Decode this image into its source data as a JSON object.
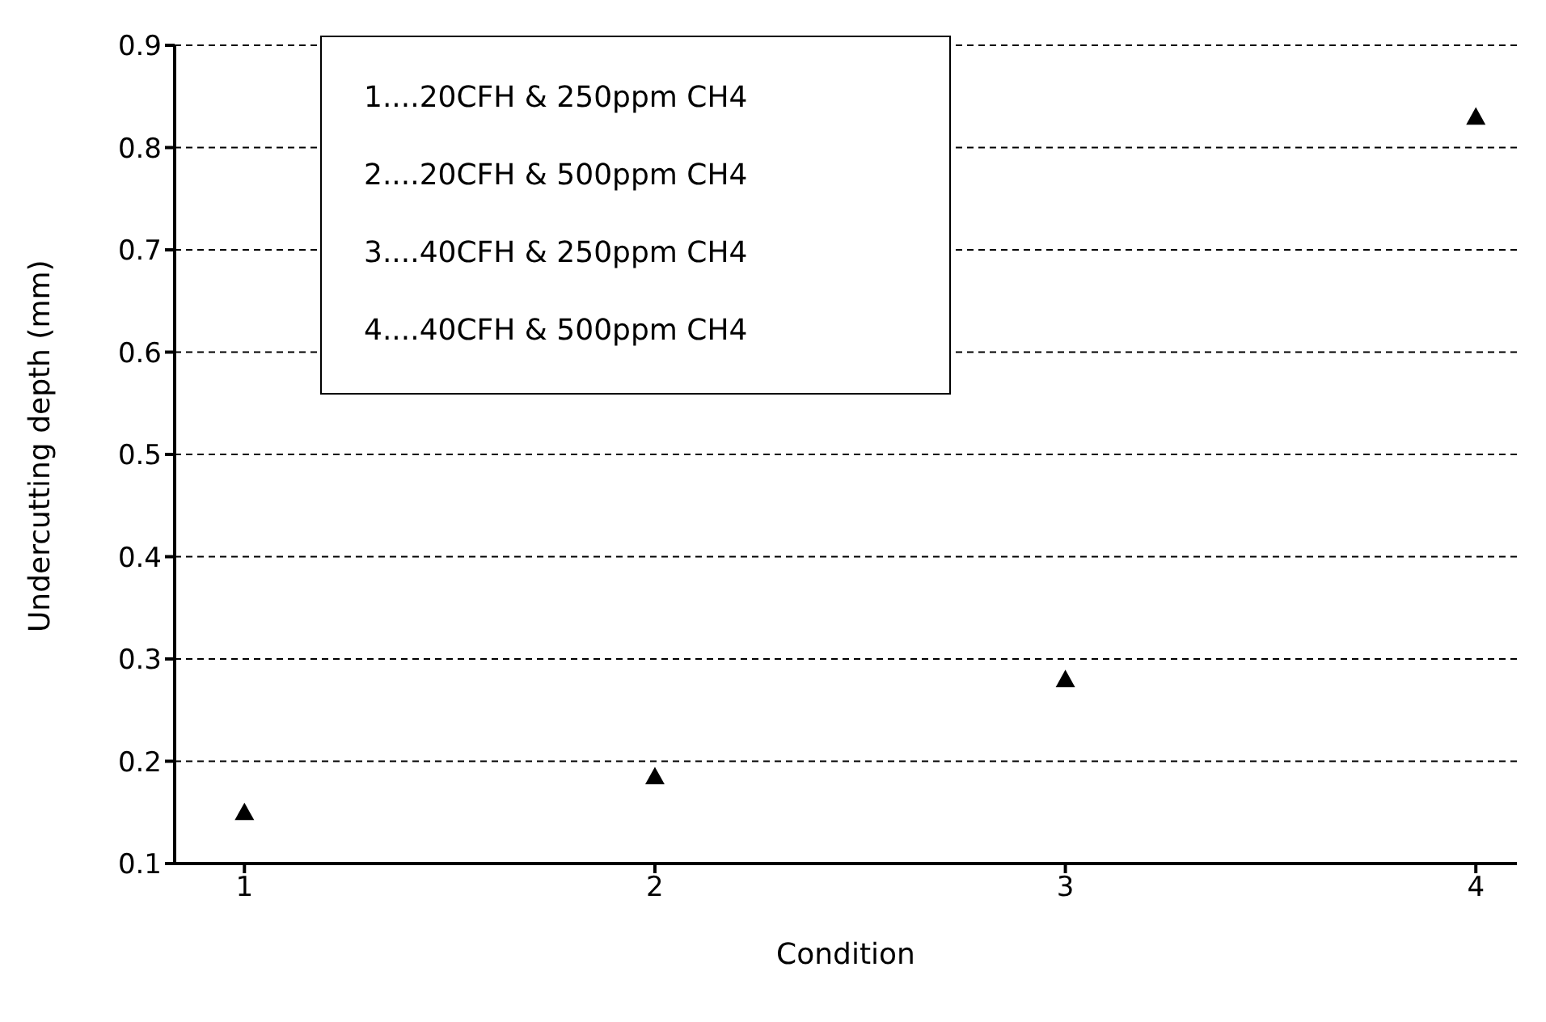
{
  "chart_data": {
    "type": "scatter",
    "xlabel": "Condition",
    "ylabel": "Undercutting depth (mm)",
    "x": [
      1,
      2,
      3,
      4
    ],
    "values": [
      0.15,
      0.185,
      0.28,
      0.83
    ],
    "color": "#000000",
    "xlim": [
      0.83,
      4.1
    ],
    "xticks": [
      1,
      2,
      3,
      4
    ],
    "ylim": [
      0.1,
      0.9
    ],
    "yticks": [
      0.1,
      0.2,
      0.3,
      0.4,
      0.5,
      0.6,
      0.7,
      0.8,
      0.9
    ],
    "grid": "y",
    "marker": "triangle",
    "annotations": [
      "1....20CFH & 250ppm CH4",
      "2....20CFH & 500ppm CH4",
      "3....40CFH & 250ppm CH4",
      "4....40CFH & 500ppm CH4"
    ]
  }
}
